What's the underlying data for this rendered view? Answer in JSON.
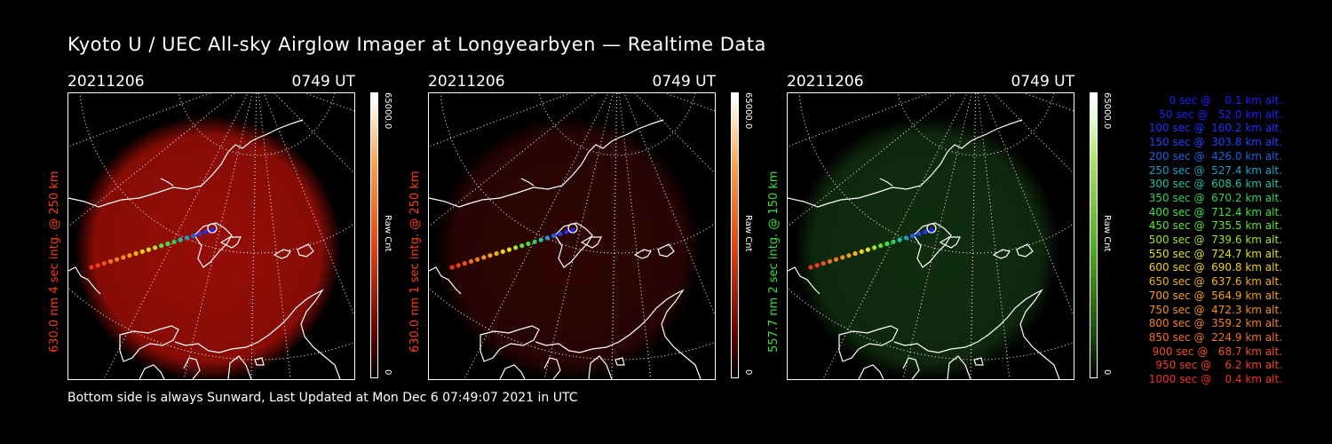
{
  "title": "Kyoto U / UEC All-sky Airglow Imager at Longyearbyen — Realtime Data",
  "footer": "Bottom side is always Sunward, Last Updated at Mon Dec  6 07:49:07 2021 in UTC",
  "panels": [
    {
      "date": "20211206",
      "time": "0749 UT",
      "label": "630.0 nm 4 sec intg. @ 250 km",
      "label_color": "#ff3a1a",
      "colorbar_max": "65000.0",
      "colorbar_min": "0",
      "colorbar_unit": "Raw Cnt",
      "glow_color": "#b01008",
      "glow_intensity": 0.85
    },
    {
      "date": "20211206",
      "time": "0749 UT",
      "label": "630.0 nm 1 sec intg. @ 250 km",
      "label_color": "#ff3a1a",
      "colorbar_max": "65000.0",
      "colorbar_min": "0",
      "colorbar_unit": "Raw Cnt",
      "glow_color": "#5a0a08",
      "glow_intensity": 0.5
    },
    {
      "date": "20211206",
      "time": "0749 UT",
      "label": "557.7 nm 2 sec intg. @ 150 km",
      "label_color": "#3cdc3c",
      "colorbar_max": "65000.0",
      "colorbar_min": "0",
      "colorbar_unit": "Raw Cnt",
      "glow_color": "#1a4a18",
      "glow_intensity": 0.6
    }
  ],
  "legend": [
    {
      "text": "   0 sec @    0.1 km alt.",
      "color": "#2020ff"
    },
    {
      "text": "  50 sec @   52.0 km alt.",
      "color": "#2020ff"
    },
    {
      "text": " 100 sec @  160.2 km alt.",
      "color": "#2030ff"
    },
    {
      "text": " 150 sec @  303.8 km alt.",
      "color": "#2040ff"
    },
    {
      "text": " 200 sec @  426.0 km alt.",
      "color": "#2060e0"
    },
    {
      "text": " 250 sec @  527.4 km alt.",
      "color": "#20a0c0"
    },
    {
      "text": " 300 sec @  608.6 km alt.",
      "color": "#20c0a0"
    },
    {
      "text": " 350 sec @  670.2 km alt.",
      "color": "#30d060"
    },
    {
      "text": " 400 sec @  712.4 km alt.",
      "color": "#40e040"
    },
    {
      "text": " 450 sec @  735.5 km alt.",
      "color": "#60e030"
    },
    {
      "text": " 500 sec @  739.6 km alt.",
      "color": "#a0e030"
    },
    {
      "text": " 550 sec @  724.7 km alt.",
      "color": "#e0e020"
    },
    {
      "text": " 600 sec @  690.8 km alt.",
      "color": "#f0d020"
    },
    {
      "text": " 650 sec @  637.6 km alt.",
      "color": "#f0b020"
    },
    {
      "text": " 700 sec @  564.9 km alt.",
      "color": "#f0a020"
    },
    {
      "text": " 750 sec @  472.3 km alt.",
      "color": "#f09020"
    },
    {
      "text": " 800 sec @  359.2 km alt.",
      "color": "#f08020"
    },
    {
      "text": " 850 sec @  224.9 km alt.",
      "color": "#f07020"
    },
    {
      "text": " 900 sec @   68.7 km alt.",
      "color": "#f05020"
    },
    {
      "text": " 950 sec @    6.2 km alt.",
      "color": "#f04020"
    },
    {
      "text": "1000 sec @    0.4 km alt.",
      "color": "#f03020"
    }
  ]
}
